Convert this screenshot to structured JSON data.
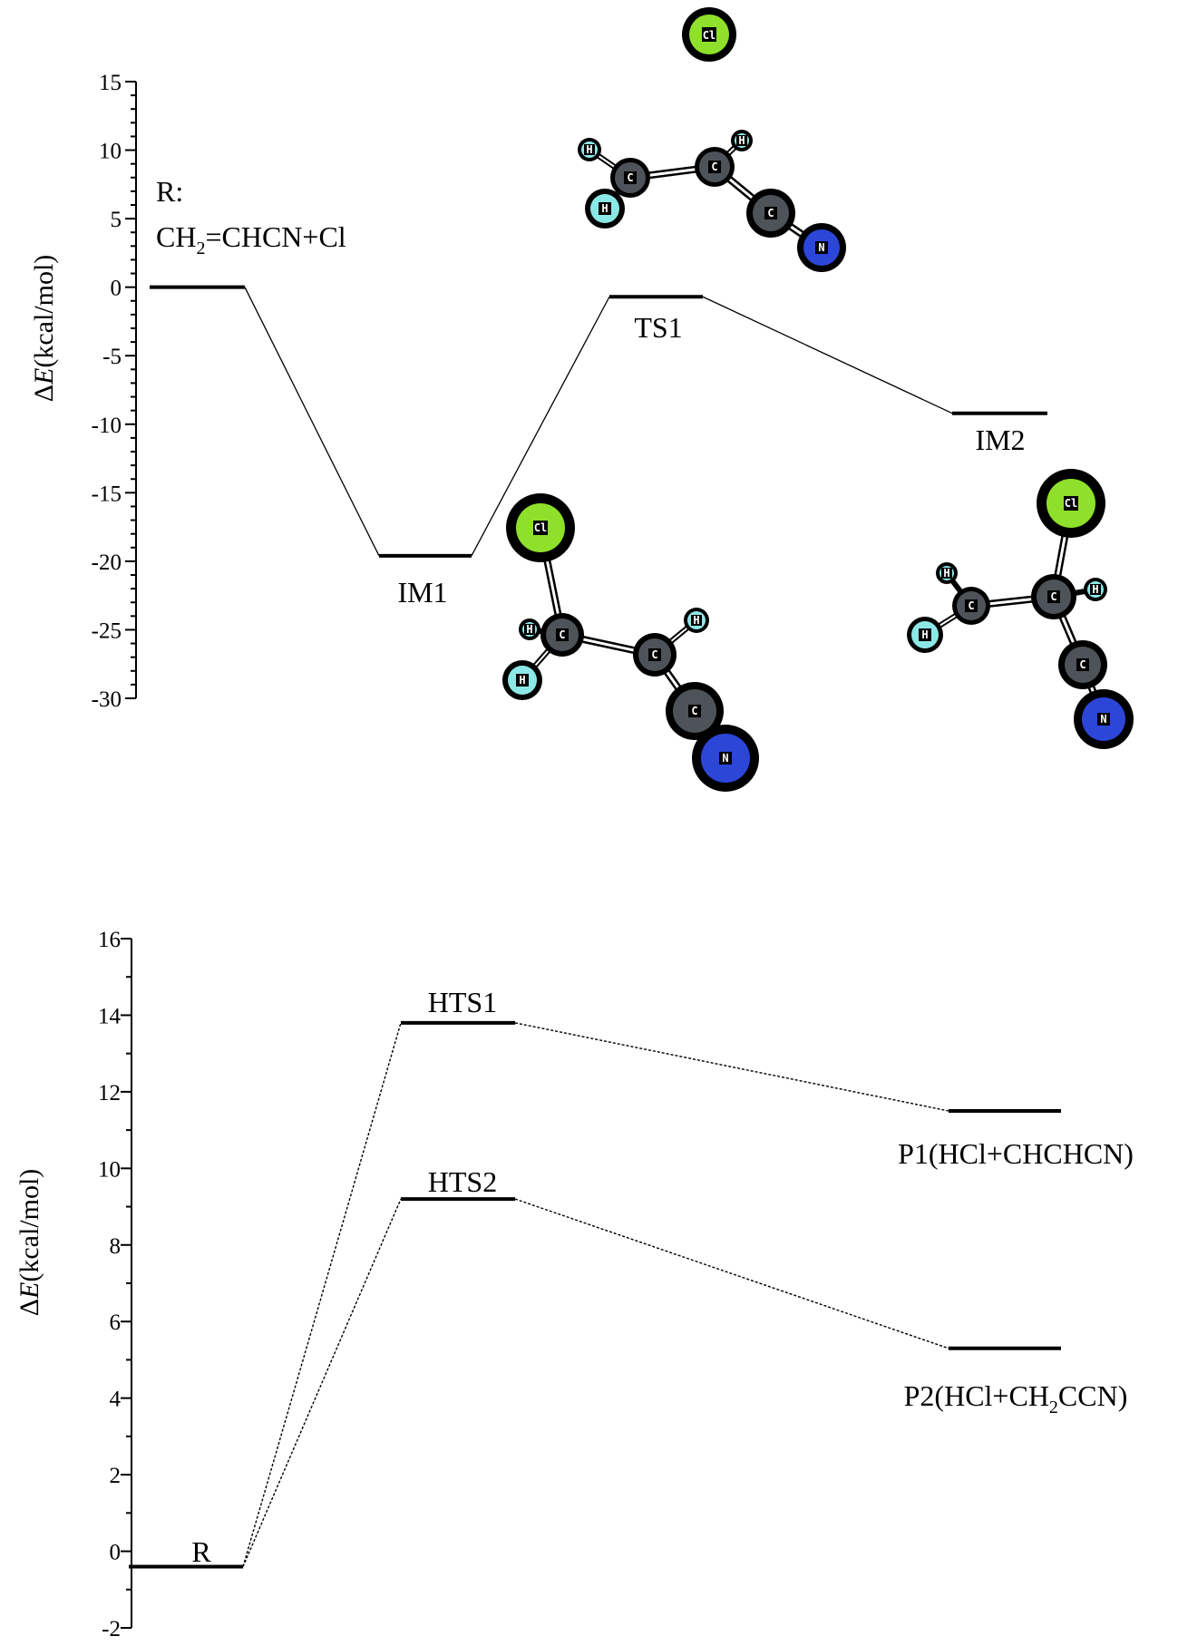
{
  "colors": {
    "cl": "#8ee02a",
    "c": "#4d5358",
    "h": "#8ce8e6",
    "n": "#2c46d8",
    "line": "#000000"
  },
  "chart_data": [
    {
      "type": "energy-profile",
      "ylabel_prefix": "Δ",
      "ylabel_italic": "E",
      "ylabel_suffix": "(kcal/mol)",
      "ylim": [
        -30,
        15
      ],
      "yticks": [
        15,
        10,
        5,
        0,
        -5,
        -10,
        -15,
        -20,
        -25,
        -30
      ],
      "connector": "solid",
      "levels": [
        {
          "id": "R",
          "energy": 0.0,
          "label": ""
        },
        {
          "id": "IM1",
          "energy": -19.6,
          "label": "IM1"
        },
        {
          "id": "TS1",
          "energy": -0.7,
          "label": "TS1"
        },
        {
          "id": "IM2",
          "energy": -9.2,
          "label": "IM2"
        }
      ],
      "paths": [
        [
          "R",
          "IM1",
          "TS1",
          "IM2"
        ]
      ],
      "reactant_label": {
        "line1": "R:",
        "line2_part1": "CH",
        "line2_sub": "2",
        "line2_part2": "=CHCN+Cl"
      },
      "molecules": [
        {
          "near": "TS1",
          "atoms": [
            "Cl",
            "C",
            "C",
            "C",
            "N",
            "H",
            "H",
            "H"
          ]
        },
        {
          "near": "IM1",
          "atoms": [
            "Cl",
            "C",
            "C",
            "C",
            "N",
            "H",
            "H",
            "H"
          ]
        },
        {
          "near": "IM2",
          "atoms": [
            "Cl",
            "C",
            "C",
            "C",
            "N",
            "H",
            "H",
            "H"
          ]
        }
      ]
    },
    {
      "type": "energy-profile",
      "ylabel_prefix": "Δ",
      "ylabel_italic": "E",
      "ylabel_suffix": "(kcal/mol)",
      "ylim": [
        -2,
        16
      ],
      "yticks": [
        16,
        14,
        12,
        10,
        8,
        6,
        4,
        2,
        0,
        -2
      ],
      "connector": "dashed",
      "levels": [
        {
          "id": "R",
          "energy": -0.4,
          "label": "R"
        },
        {
          "id": "HTS1",
          "energy": 13.8,
          "label": "HTS1"
        },
        {
          "id": "HTS2",
          "energy": 9.2,
          "label": "HTS2"
        },
        {
          "id": "P1",
          "energy": 11.5,
          "label": "P1(HCl+CHCHCN)"
        },
        {
          "id": "P2",
          "energy": 5.3,
          "label_part1": "P2(HCl+CH",
          "label_sub": "2",
          "label_part2": "CCN)"
        }
      ],
      "paths": [
        [
          "R",
          "HTS1",
          "P1"
        ],
        [
          "R",
          "HTS2",
          "P2"
        ]
      ]
    }
  ]
}
